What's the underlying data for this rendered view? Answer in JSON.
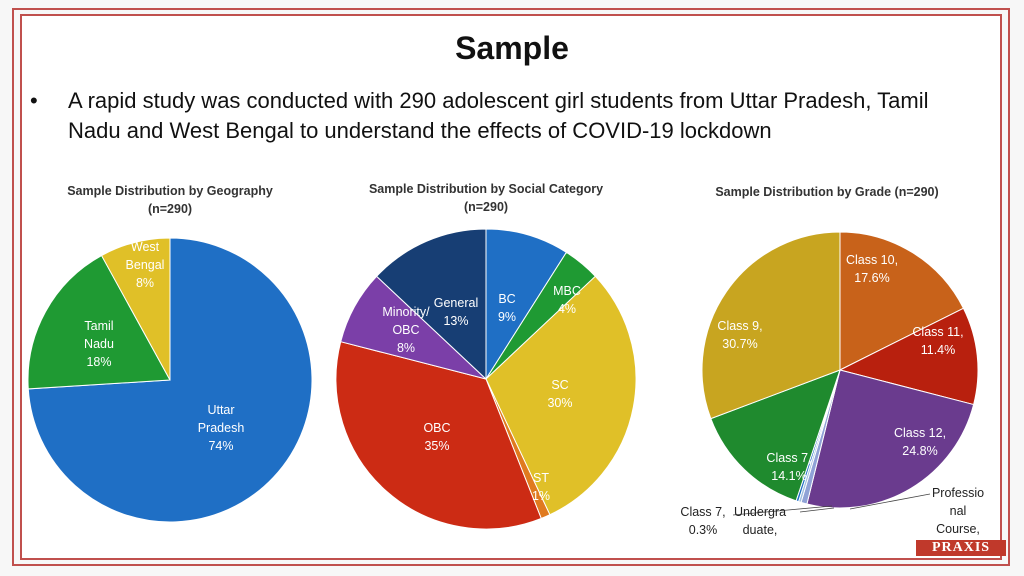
{
  "slide": {
    "title": "Sample",
    "bullet": "A rapid study was conducted with 290 adolescent girl students from Uttar Pradesh, Tamil Nadu and West Bengal to understand the effects of COVID-19 lockdown",
    "logo_text": "PRAXIS"
  },
  "chart_data": [
    {
      "type": "pie",
      "title_line1": "Sample Distribution by Geography",
      "title_line2": "(n=290)",
      "slices": [
        {
          "label": "Uttar Pradesh",
          "value": 74,
          "display": "74%",
          "color": "#1f6fc5"
        },
        {
          "label": "Tamil Nadu",
          "value": 18,
          "display": "18%",
          "color": "#1f9a33"
        },
        {
          "label": "West Bengal",
          "value": 8,
          "display": "8%",
          "color": "#e0c028"
        }
      ]
    },
    {
      "type": "pie",
      "title_line1": "Sample Distribution by Social Category",
      "title_line2": "(n=290)",
      "slices": [
        {
          "label": "BC",
          "value": 9,
          "display": "9%",
          "color": "#1f6fc5"
        },
        {
          "label": "MBC",
          "value": 4,
          "display": "4%",
          "color": "#1f9a33"
        },
        {
          "label": "SC",
          "value": 30,
          "display": "30%",
          "color": "#e0c028"
        },
        {
          "label": "ST",
          "value": 1,
          "display": "1%",
          "color": "#e07a1f"
        },
        {
          "label": "OBC",
          "value": 35,
          "display": "35%",
          "color": "#cc2b14"
        },
        {
          "label": "Minority/ OBC",
          "value": 8,
          "display": "8%",
          "color": "#7b3fa8"
        },
        {
          "label": "General",
          "value": 13,
          "display": "13%",
          "color": "#173e74"
        }
      ]
    },
    {
      "type": "pie",
      "title_line1": "Sample Distribution by Grade (n=290)",
      "title_line2": "",
      "slices": [
        {
          "label": "Class 10,",
          "value": 17.6,
          "display": "17.6%",
          "color": "#c8621a"
        },
        {
          "label": "Class 11,",
          "value": 11.4,
          "display": "11.4%",
          "color": "#b8200e"
        },
        {
          "label": "Class 12,",
          "value": 24.8,
          "display": "24.8%",
          "color": "#6a3b8e"
        },
        {
          "label": "Professional Course,",
          "value": 0.7,
          "display": "",
          "color": "#8fa2d6"
        },
        {
          "label": "Undergraduate,",
          "value": 0.3,
          "display": "",
          "color": "#9fbfe0"
        },
        {
          "label": "Class 7,",
          "value": 0.3,
          "display": "0.3%",
          "color": "#1f6fc5"
        },
        {
          "label": "Class 7,",
          "value": 14.1,
          "display": "14.1%",
          "color": "#1f8a2e"
        },
        {
          "label": "Class 9,",
          "value": 30.7,
          "display": "30.7%",
          "color": "#c8a520"
        }
      ]
    }
  ]
}
